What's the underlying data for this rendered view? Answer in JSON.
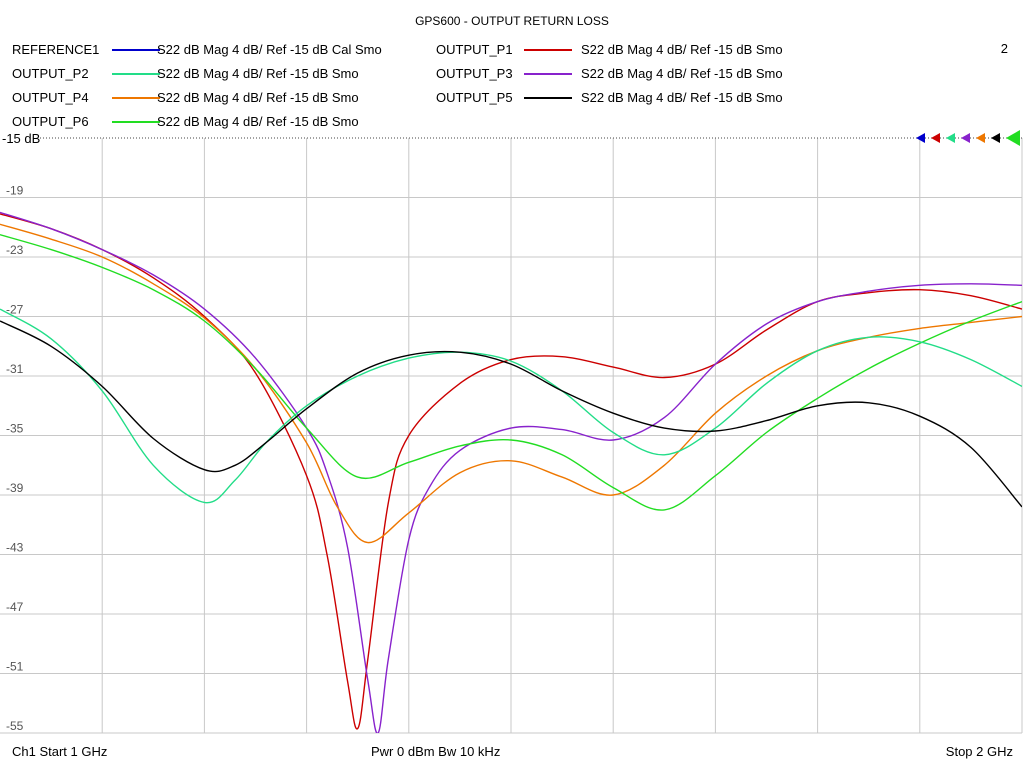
{
  "chart_data": {
    "type": "line",
    "title": "GPS600 - OUTPUT RETURN LOSS",
    "channel_number": "2",
    "ref_label": "-15 dB",
    "ylim": [
      -55,
      -15
    ],
    "xlim": [
      1,
      2
    ],
    "y_ticks": [
      {
        "value": -19,
        "label": "-19"
      },
      {
        "value": -23,
        "label": "-23"
      },
      {
        "value": -27,
        "label": "-27"
      },
      {
        "value": -31,
        "label": "-31"
      },
      {
        "value": -35,
        "label": "-35"
      },
      {
        "value": -39,
        "label": "-39"
      },
      {
        "value": -43,
        "label": "-43"
      },
      {
        "value": -47,
        "label": "-47"
      },
      {
        "value": -51,
        "label": "-51"
      },
      {
        "value": -55,
        "label": "-55"
      }
    ],
    "x_gridlines": 10,
    "grid": true,
    "legend_position": "top",
    "legend": [
      {
        "name": "REFERENCE1",
        "desc": "S22  dB Mag  4 dB/ Ref -15 dB  Cal Smo",
        "color": "#0000cc"
      },
      {
        "name": "OUTPUT_P1",
        "desc": "S22  dB Mag  4 dB/ Ref -15 dB  Smo",
        "color": "#cc0000"
      },
      {
        "name": "OUTPUT_P2",
        "desc": "S22  dB Mag  4 dB/ Ref -15 dB  Smo",
        "color": "#22dd88"
      },
      {
        "name": "OUTPUT_P3",
        "desc": "S22  dB Mag  4 dB/ Ref -15 dB  Smo",
        "color": "#8822cc"
      },
      {
        "name": "OUTPUT_P4",
        "desc": "S22  dB Mag  4 dB/ Ref -15 dB  Smo",
        "color": "#ee7700"
      },
      {
        "name": "OUTPUT_P5",
        "desc": "S22  dB Mag  4 dB/ Ref -15 dB  Smo",
        "color": "#000000"
      },
      {
        "name": "OUTPUT_P6",
        "desc": "S22  dB Mag  4 dB/ Ref -15 dB  Smo",
        "color": "#22dd22"
      }
    ],
    "series": [
      {
        "name": "OUTPUT_P1",
        "color": "#cc0000",
        "x": [
          1.0,
          1.05,
          1.1,
          1.15,
          1.2,
          1.25,
          1.3,
          1.32,
          1.34,
          1.35,
          1.36,
          1.38,
          1.4,
          1.45,
          1.5,
          1.55,
          1.6,
          1.65,
          1.7,
          1.75,
          1.8,
          1.85,
          1.9,
          1.95,
          2.0
        ],
        "y": [
          -20.1,
          -21.1,
          -22.5,
          -24.4,
          -27.0,
          -30.8,
          -37.7,
          -43.0,
          -51.5,
          -54.7,
          -50.0,
          -39.5,
          -35.0,
          -31.5,
          -29.9,
          -29.7,
          -30.4,
          -31.1,
          -30.2,
          -27.9,
          -26.0,
          -25.4,
          -25.2,
          -25.6,
          -26.5
        ]
      },
      {
        "name": "OUTPUT_P3",
        "color": "#8822cc",
        "x": [
          1.0,
          1.05,
          1.1,
          1.15,
          1.2,
          1.25,
          1.3,
          1.32,
          1.34,
          1.36,
          1.37,
          1.38,
          1.4,
          1.42,
          1.45,
          1.5,
          1.55,
          1.6,
          1.65,
          1.7,
          1.75,
          1.8,
          1.85,
          1.9,
          1.95,
          2.0
        ],
        "y": [
          -20.0,
          -21.1,
          -22.5,
          -24.2,
          -26.5,
          -29.8,
          -34.5,
          -37.5,
          -42.5,
          -51.5,
          -55.0,
          -50.0,
          -42.0,
          -38.5,
          -36.0,
          -34.5,
          -34.6,
          -35.3,
          -33.8,
          -30.2,
          -27.5,
          -26.0,
          -25.3,
          -24.9,
          -24.8,
          -24.9
        ]
      },
      {
        "name": "OUTPUT_P4",
        "color": "#ee7700",
        "x": [
          1.0,
          1.05,
          1.1,
          1.15,
          1.2,
          1.25,
          1.3,
          1.33,
          1.36,
          1.4,
          1.45,
          1.5,
          1.55,
          1.6,
          1.65,
          1.7,
          1.75,
          1.8,
          1.85,
          1.9,
          1.95,
          2.0
        ],
        "y": [
          -20.8,
          -21.8,
          -23.0,
          -24.8,
          -27.1,
          -30.5,
          -35.5,
          -39.8,
          -42.2,
          -40.2,
          -37.5,
          -36.7,
          -37.8,
          -39.0,
          -37.0,
          -33.5,
          -31.0,
          -29.3,
          -28.4,
          -27.8,
          -27.4,
          -27.0
        ]
      },
      {
        "name": "OUTPUT_P6",
        "color": "#22dd22",
        "x": [
          1.0,
          1.05,
          1.1,
          1.15,
          1.2,
          1.25,
          1.3,
          1.35,
          1.4,
          1.45,
          1.5,
          1.55,
          1.6,
          1.65,
          1.7,
          1.75,
          1.8,
          1.85,
          1.9,
          1.95,
          2.0
        ],
        "y": [
          -21.5,
          -22.5,
          -23.7,
          -25.2,
          -27.3,
          -30.5,
          -34.5,
          -37.8,
          -36.8,
          -35.7,
          -35.3,
          -36.3,
          -38.5,
          -40.0,
          -37.7,
          -34.8,
          -32.5,
          -30.5,
          -28.8,
          -27.3,
          -26.0
        ]
      },
      {
        "name": "OUTPUT_P2",
        "color": "#22dd88",
        "x": [
          1.0,
          1.05,
          1.1,
          1.15,
          1.2,
          1.23,
          1.26,
          1.3,
          1.35,
          1.4,
          1.45,
          1.5,
          1.55,
          1.6,
          1.65,
          1.7,
          1.75,
          1.8,
          1.85,
          1.9,
          1.95,
          2.0
        ],
        "y": [
          -26.5,
          -28.5,
          -32.0,
          -37.0,
          -39.5,
          -38.0,
          -35.5,
          -33.0,
          -31.0,
          -29.8,
          -29.4,
          -30.0,
          -32.0,
          -34.8,
          -36.3,
          -34.5,
          -31.5,
          -29.3,
          -28.4,
          -28.7,
          -29.9,
          -31.7
        ]
      },
      {
        "name": "OUTPUT_P5",
        "color": "#000000",
        "x": [
          1.0,
          1.05,
          1.1,
          1.15,
          1.2,
          1.23,
          1.26,
          1.3,
          1.35,
          1.4,
          1.45,
          1.5,
          1.55,
          1.6,
          1.65,
          1.7,
          1.75,
          1.8,
          1.85,
          1.9,
          1.95,
          2.0
        ],
        "y": [
          -27.3,
          -29.0,
          -31.7,
          -35.2,
          -37.3,
          -37.0,
          -35.5,
          -33.2,
          -30.8,
          -29.6,
          -29.4,
          -30.2,
          -32.0,
          -33.5,
          -34.5,
          -34.7,
          -34.0,
          -33.0,
          -32.8,
          -33.7,
          -35.8,
          -39.8
        ]
      }
    ]
  },
  "footer": {
    "left": "Ch1  Start  1 GHz",
    "center": "Pwr  0 dBm  Bw  10 kHz",
    "right": "Stop  2 GHz"
  }
}
